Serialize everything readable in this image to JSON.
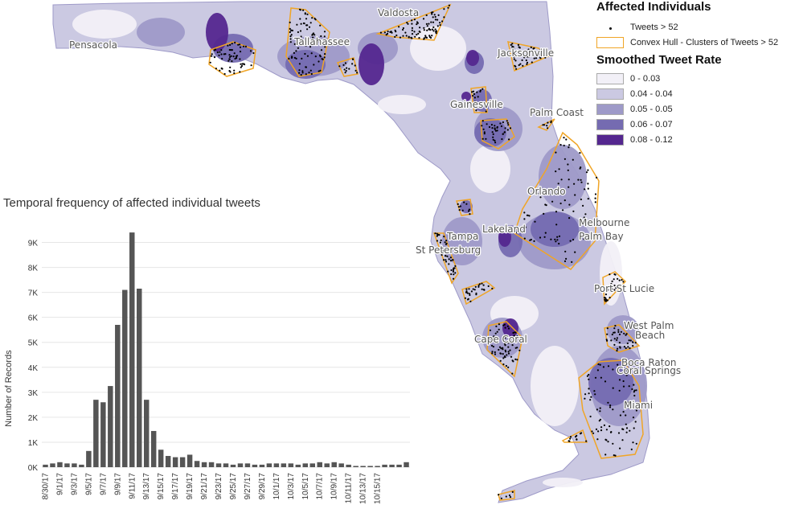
{
  "map": {
    "cities": [
      "Pensacola",
      "Tallahassee",
      "Valdosta",
      "Jacksonville",
      "Gainesville",
      "Palm Coast",
      "Orlando",
      "Melbourne",
      "Palm Bay",
      "Tampa",
      "Lakeland",
      "St Petersburg",
      "Port St Lucie",
      "Cape Coral",
      "West Palm",
      "Beach",
      "Boca Raton",
      "Coral Springs",
      "Miami"
    ],
    "colors": {
      "shade_1": "#f2f0f7",
      "shade_2": "#cbc9e2",
      "shade_3": "#9e9ac8",
      "shade_4": "#756bb1",
      "shade_5": "#54278f",
      "hull": "#f0a526",
      "dot": "#000000"
    }
  },
  "legend": {
    "title_affected": "Affected Individuals",
    "dot_label": "Tweets > 52",
    "hull_label": "Convex Hull - Clusters of Tweets > 52",
    "title_smoothed": "Smoothed Tweet Rate",
    "classes": [
      {
        "label": "0 - 0.03",
        "color": "#f2f0f7"
      },
      {
        "label": "0.04 - 0.04",
        "color": "#cbc9e2"
      },
      {
        "label": "0.05 - 0.05",
        "color": "#9e9ac8"
      },
      {
        "label": "0.06 - 0.07",
        "color": "#756bb1"
      },
      {
        "label": "0.08 - 0.12",
        "color": "#54278f"
      }
    ]
  },
  "chart_data": {
    "type": "bar",
    "title": "Temporal frequency of affected individual tweets",
    "xlabel": "",
    "ylabel": "Number of Records",
    "ylim": [
      0,
      9500
    ],
    "yticks": [
      0,
      1000,
      2000,
      3000,
      4000,
      5000,
      6000,
      7000,
      8000,
      9000
    ],
    "ytick_labels": [
      "0K",
      "1K",
      "2K",
      "3K",
      "4K",
      "5K",
      "6K",
      "7K",
      "8K",
      "9K"
    ],
    "xtick_labels": [
      "8/30/17",
      "9/1/17",
      "9/3/17",
      "9/5/17",
      "9/7/17",
      "9/9/17",
      "9/11/17",
      "9/13/17",
      "9/15/17",
      "9/17/17",
      "9/19/17",
      "9/21/17",
      "9/23/17",
      "9/25/17",
      "9/27/17",
      "9/29/17",
      "10/1/17",
      "10/3/17",
      "10/5/17",
      "10/7/17",
      "10/9/17",
      "10/11/17",
      "10/13/17",
      "10/15/17"
    ],
    "values": [
      100,
      150,
      200,
      150,
      150,
      100,
      650,
      2700,
      2600,
      3250,
      5700,
      7100,
      9400,
      7150,
      2700,
      1450,
      700,
      450,
      400,
      400,
      500,
      250,
      200,
      200,
      150,
      150,
      100,
      150,
      150,
      100,
      100,
      150,
      150,
      150,
      150,
      100,
      150,
      150,
      200,
      150,
      200,
      150,
      100,
      50,
      50,
      50,
      50,
      100,
      100,
      100,
      200
    ],
    "color": "#555555"
  }
}
